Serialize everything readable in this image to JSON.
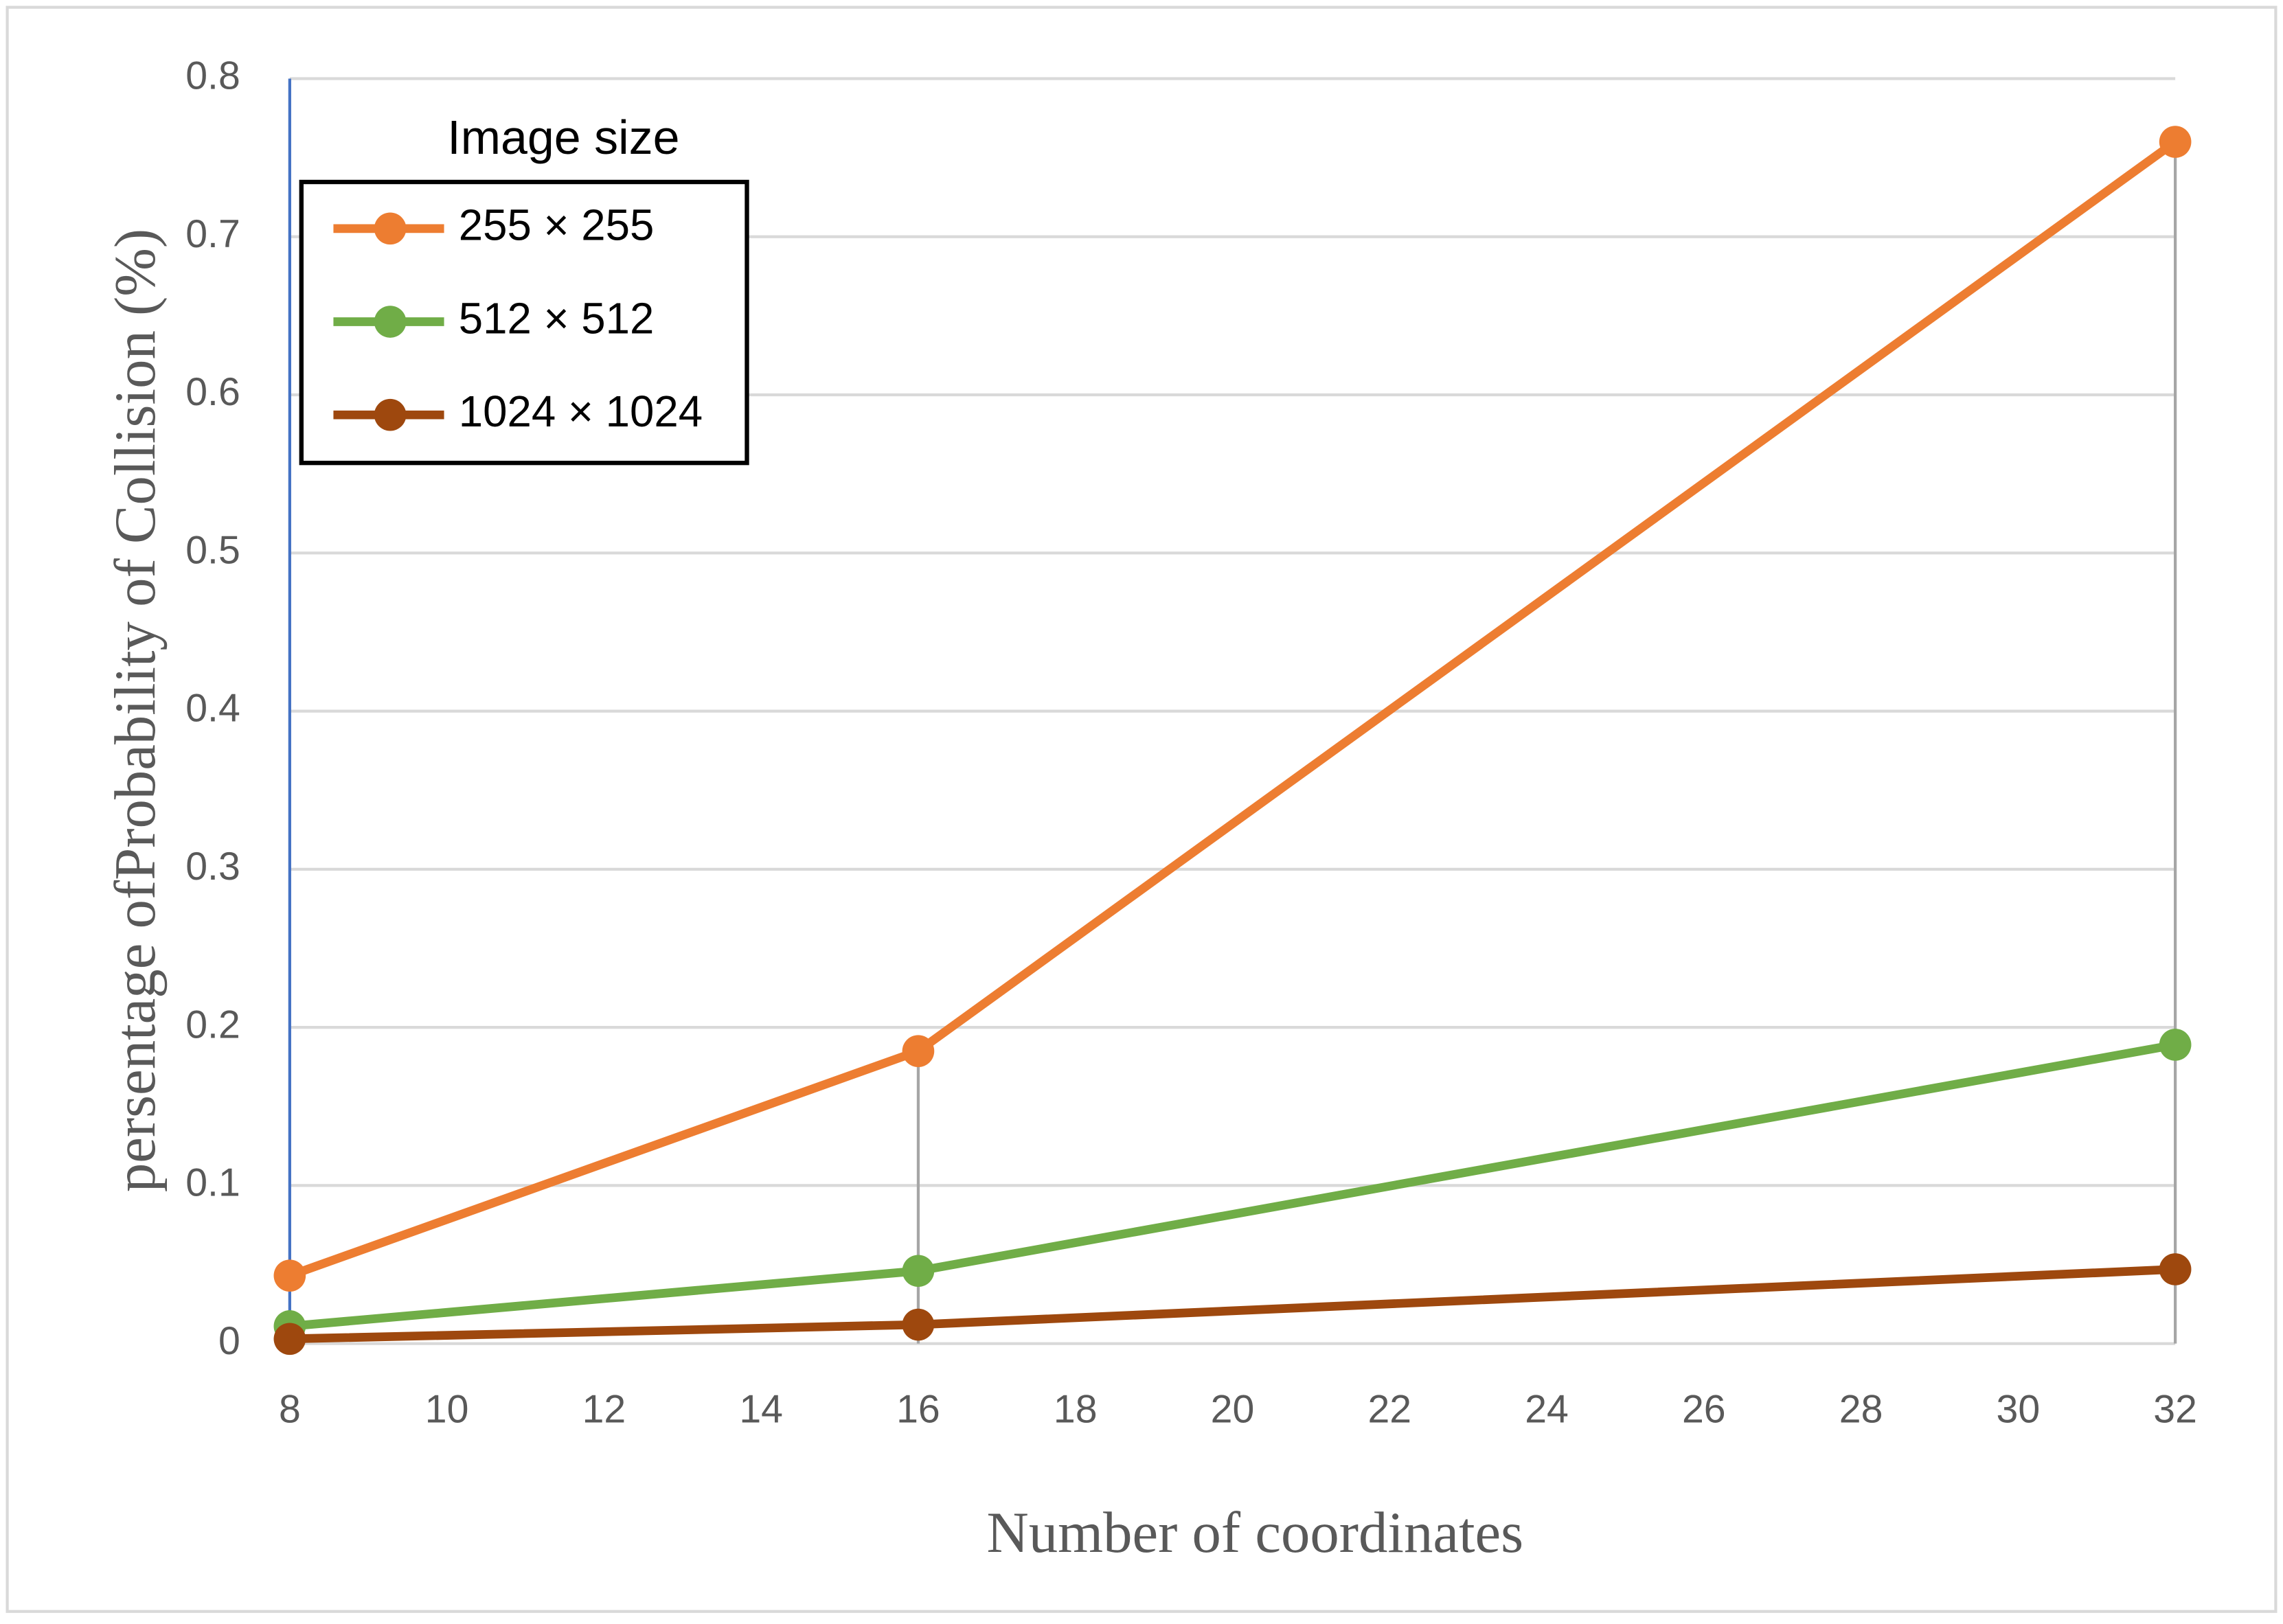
{
  "chart_data": {
    "type": "line",
    "x_label": "Number of coordinates",
    "y_label": "persentage ofProbability of Collision (%)",
    "legend_title": "Image size",
    "legend_position": "upper left",
    "x": [
      8,
      16,
      32
    ],
    "series": [
      {
        "name": "255 × 255",
        "color": "#ED7D31",
        "values": [
          0.043,
          0.185,
          0.76
        ]
      },
      {
        "name": "512 × 512",
        "color": "#70AD47",
        "values": [
          0.011,
          0.046,
          0.189
        ]
      },
      {
        "name": "1024 × 1024",
        "color": "#9E480E",
        "values": [
          0.003,
          0.012,
          0.047
        ]
      }
    ],
    "xlim": [
      8,
      32
    ],
    "xticks": [
      8,
      10,
      12,
      14,
      16,
      18,
      20,
      22,
      24,
      26,
      28,
      30,
      32
    ],
    "ylim": [
      0,
      0.8
    ],
    "yticks": [
      0,
      0.1,
      0.2,
      0.3,
      0.4,
      0.5,
      0.6,
      0.7,
      0.8
    ],
    "grid": true
  }
}
